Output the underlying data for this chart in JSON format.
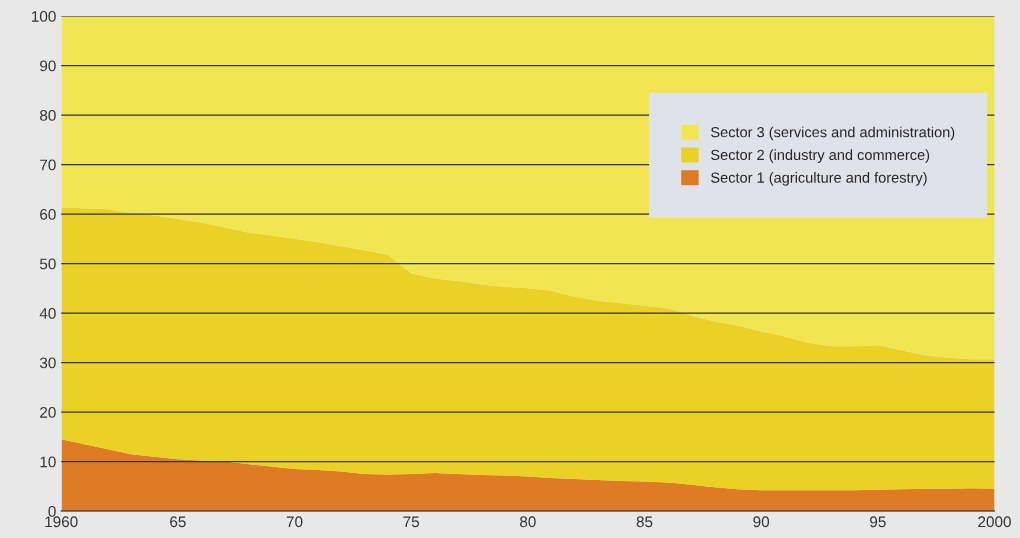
{
  "chart_data": {
    "type": "area",
    "stacked": true,
    "x": [
      1960,
      1961,
      1962,
      1963,
      1964,
      1965,
      1966,
      1967,
      1968,
      1969,
      1970,
      1971,
      1972,
      1973,
      1974,
      1975,
      1976,
      1977,
      1978,
      1979,
      1980,
      1981,
      1982,
      1983,
      1984,
      1985,
      1986,
      1987,
      1988,
      1989,
      1990,
      1991,
      1992,
      1993,
      1994,
      1995,
      1996,
      1997,
      1998,
      1999,
      2000
    ],
    "series": [
      {
        "name": "Sector 1 (agriculture and forestry)",
        "color": "#e07b25",
        "values": [
          14.5,
          13.5,
          12.5,
          11.5,
          11,
          10.5,
          10.2,
          10,
          9.5,
          9,
          8.5,
          8.3,
          8,
          7.5,
          7.4,
          7.5,
          7.7,
          7.5,
          7.3,
          7.2,
          7,
          6.7,
          6.5,
          6.3,
          6.1,
          6,
          5.8,
          5.3,
          4.8,
          4.4,
          4.2,
          4.2,
          4.2,
          4.2,
          4.2,
          4.3,
          4.4,
          4.5,
          4.5,
          4.6,
          4.5
        ]
      },
      {
        "name": "Sector 2 (industry and commerce)",
        "color": "#ebd026",
        "values": [
          46.8,
          47.7,
          48.5,
          48.7,
          48.7,
          48.5,
          48.1,
          47.3,
          46.8,
          46.7,
          46.5,
          46,
          45.5,
          45.2,
          44.4,
          40.5,
          39.3,
          39,
          38.5,
          38.1,
          38,
          37.8,
          36.8,
          36.2,
          35.9,
          35.5,
          35.2,
          34.2,
          33.5,
          33.1,
          32.1,
          31.1,
          29.8,
          29.1,
          29.1,
          29.2,
          28.1,
          27,
          26.5,
          26.1,
          26.2
        ]
      },
      {
        "name": "Sector 3 (services and administration)",
        "color": "#f2e650",
        "values": [
          38.7,
          38.8,
          39,
          39.8,
          40.3,
          41,
          41.7,
          42.7,
          43.7,
          44.3,
          45,
          45.7,
          46.5,
          47.3,
          48.2,
          52,
          53,
          53.5,
          54.2,
          54.7,
          55,
          55.5,
          56.7,
          57.5,
          58,
          58.5,
          59,
          60.5,
          61.7,
          62.5,
          63.7,
          64.7,
          66,
          66.7,
          66.7,
          66.5,
          67.5,
          68.5,
          69,
          69.3,
          69.3
        ]
      }
    ],
    "xlim": [
      1960,
      2000
    ],
    "xticks": [
      {
        "value": 1960,
        "label": "1960"
      },
      {
        "value": 1965,
        "label": "65"
      },
      {
        "value": 1970,
        "label": "70"
      },
      {
        "value": 1975,
        "label": "75"
      },
      {
        "value": 1980,
        "label": "80"
      },
      {
        "value": 1985,
        "label": "85"
      },
      {
        "value": 1990,
        "label": "90"
      },
      {
        "value": 1995,
        "label": "95"
      },
      {
        "value": 2000,
        "label": "2000"
      }
    ],
    "ylim": [
      0,
      100
    ],
    "yticks": [
      0,
      10,
      20,
      30,
      40,
      50,
      60,
      70,
      80,
      90,
      100
    ],
    "grid": "y",
    "legend": "top right"
  }
}
